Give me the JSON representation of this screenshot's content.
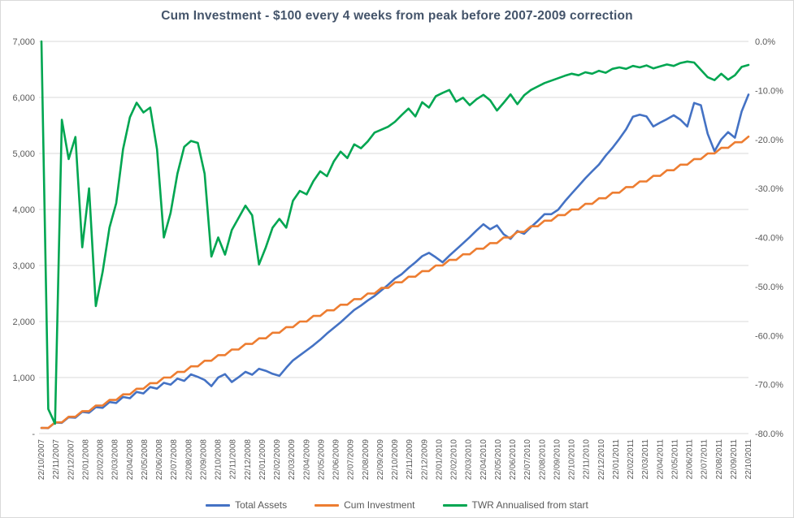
{
  "chart": {
    "title": "Cum Investment - $100 every 4 weeks from peak before 2007-2009 correction"
  },
  "chart_data": {
    "type": "line",
    "title": "Cum Investment - $100 every 4 weeks from peak before 2007-2009 correction",
    "x_unit": "weeks since 22/10/2007 (one data point every 2 weeks)",
    "x_step_weeks": 2,
    "x_total_weeks": 208,
    "grid": "horizontal",
    "legend_position": "bottom",
    "x_axis": {
      "labels": [
        "22/10/2007",
        "22/11/2007",
        "22/12/2007",
        "22/01/2008",
        "22/02/2008",
        "22/03/2008",
        "22/04/2008",
        "22/05/2008",
        "22/06/2008",
        "22/07/2008",
        "22/08/2008",
        "22/09/2008",
        "22/10/2008",
        "22/11/2008",
        "22/12/2008",
        "22/01/2009",
        "22/02/2009",
        "22/03/2009",
        "22/04/2009",
        "22/05/2009",
        "22/06/2009",
        "22/07/2009",
        "22/08/2009",
        "22/09/2009",
        "22/10/2009",
        "22/11/2009",
        "22/12/2009",
        "22/01/2010",
        "22/02/2010",
        "22/03/2010",
        "22/04/2010",
        "22/05/2010",
        "22/06/2010",
        "22/07/2010",
        "22/08/2010",
        "22/09/2010",
        "22/10/2010",
        "22/11/2010",
        "22/12/2010",
        "22/01/2011",
        "22/02/2011",
        "22/03/2011",
        "22/04/2011",
        "22/05/2011",
        "22/06/2011",
        "22/07/2011",
        "22/08/2011",
        "22/09/2011",
        "22/10/2011"
      ]
    },
    "y_left_axis": {
      "min": 0,
      "max": 7000,
      "labels": [
        "7,000",
        "6,000",
        "5,000",
        "4,000",
        "3,000",
        "2,000",
        "1,000",
        "-"
      ]
    },
    "y_right_axis": {
      "min": -80,
      "max": 0,
      "labels": [
        "0.0%",
        "-10.0%",
        "-20.0%",
        "-30.0%",
        "-40.0%",
        "-50.0%",
        "-60.0%",
        "-70.0%",
        "-80.0%"
      ]
    },
    "series": [
      {
        "name": "Total Assets",
        "axis": "left",
        "color": "#4472C4",
        "values": [
          100,
          97,
          196,
          191,
          291,
          284,
          387,
          373,
          471,
          459,
          563,
          546,
          653,
          631,
          743,
          716,
          831,
          801,
          906,
          873,
          981,
          941,
          1056,
          1011,
          956,
          846,
          1001,
          1061,
          921,
          1006,
          1101,
          1051,
          1156,
          1121,
          1066,
          1031,
          1176,
          1306,
          1396,
          1486,
          1576,
          1676,
          1786,
          1886,
          1986,
          2096,
          2206,
          2286,
          2376,
          2456,
          2556,
          2656,
          2766,
          2846,
          2956,
          3056,
          3166,
          3226,
          3146,
          3056,
          3176,
          3286,
          3396,
          3506,
          3626,
          3736,
          3646,
          3716,
          3556,
          3476,
          3616,
          3566,
          3686,
          3796,
          3916,
          3916,
          3996,
          4146,
          4286,
          4421,
          4556,
          4681,
          4801,
          4961,
          5101,
          5261,
          5431,
          5656,
          5691,
          5661,
          5481,
          5551,
          5611,
          5681,
          5601,
          5481,
          5901,
          5861,
          5351,
          5041,
          5251,
          5381,
          5281,
          5751,
          6051
        ]
      },
      {
        "name": "Cum Investment",
        "axis": "left",
        "color": "#ED7D31",
        "values": [
          100,
          100,
          200,
          200,
          300,
          300,
          400,
          400,
          500,
          500,
          600,
          600,
          700,
          700,
          800,
          800,
          900,
          900,
          1000,
          1000,
          1100,
          1100,
          1200,
          1200,
          1300,
          1300,
          1400,
          1400,
          1500,
          1500,
          1600,
          1600,
          1700,
          1700,
          1800,
          1800,
          1900,
          1900,
          2000,
          2000,
          2100,
          2100,
          2200,
          2200,
          2300,
          2300,
          2400,
          2400,
          2500,
          2500,
          2600,
          2600,
          2700,
          2700,
          2800,
          2800,
          2900,
          2900,
          3000,
          3000,
          3100,
          3100,
          3200,
          3200,
          3300,
          3300,
          3400,
          3400,
          3500,
          3500,
          3600,
          3600,
          3700,
          3700,
          3800,
          3800,
          3900,
          3900,
          4000,
          4000,
          4100,
          4100,
          4200,
          4200,
          4300,
          4300,
          4400,
          4400,
          4500,
          4500,
          4600,
          4600,
          4700,
          4700,
          4800,
          4800,
          4900,
          4900,
          5000,
          5000,
          5100,
          5100,
          5200,
          5200,
          5300
        ]
      },
      {
        "name": "TWR Annualised from start",
        "axis": "right",
        "color": "#00A651",
        "values": [
          0,
          -75,
          -78,
          -16,
          -24,
          -19.5,
          -42,
          -30,
          -54,
          -47,
          -38,
          -33,
          -22,
          -15.5,
          -12.5,
          -14.5,
          -13.5,
          -22,
          -40,
          -35,
          -27,
          -21.5,
          -20.3,
          -20.7,
          -27,
          -43.9,
          -40,
          -43.5,
          -38.5,
          -36,
          -33.5,
          -35.5,
          -45.5,
          -42,
          -38,
          -36.2,
          -38,
          -32.5,
          -30.5,
          -31.2,
          -28.5,
          -26.5,
          -27.5,
          -24.5,
          -22.5,
          -23.8,
          -21,
          -21.8,
          -20.4,
          -18.6,
          -18,
          -17.4,
          -16.4,
          -15,
          -13.7,
          -15.3,
          -12.4,
          -13.5,
          -11.2,
          -10.5,
          -9.9,
          -12.3,
          -11.5,
          -13,
          -11.8,
          -10.9,
          -12,
          -14.1,
          -12.5,
          -10.8,
          -12.8,
          -11,
          -9.9,
          -9.2,
          -8.5,
          -8,
          -7.5,
          -7,
          -6.6,
          -6.9,
          -6.3,
          -6.6,
          -6,
          -6.4,
          -5.6,
          -5.3,
          -5.6,
          -5,
          -5.3,
          -4.9,
          -5.5,
          -5.1,
          -4.7,
          -5,
          -4.4,
          -4.1,
          -4.3,
          -5.8,
          -7.3,
          -7.9,
          -6.6,
          -7.8,
          -6.9,
          -5.2,
          -4.8
        ]
      }
    ],
    "style": {
      "gridline_color": "#D9D9D9",
      "axis_label_color": "#595959",
      "title_color": "#44546A",
      "background": "#FFFFFF"
    }
  },
  "legend": {
    "items": [
      {
        "label": "Total Assets",
        "color": "#4472C4"
      },
      {
        "label": "Cum Investment",
        "color": "#ED7D31"
      },
      {
        "label": "TWR Annualised from start",
        "color": "#00A651"
      }
    ]
  }
}
